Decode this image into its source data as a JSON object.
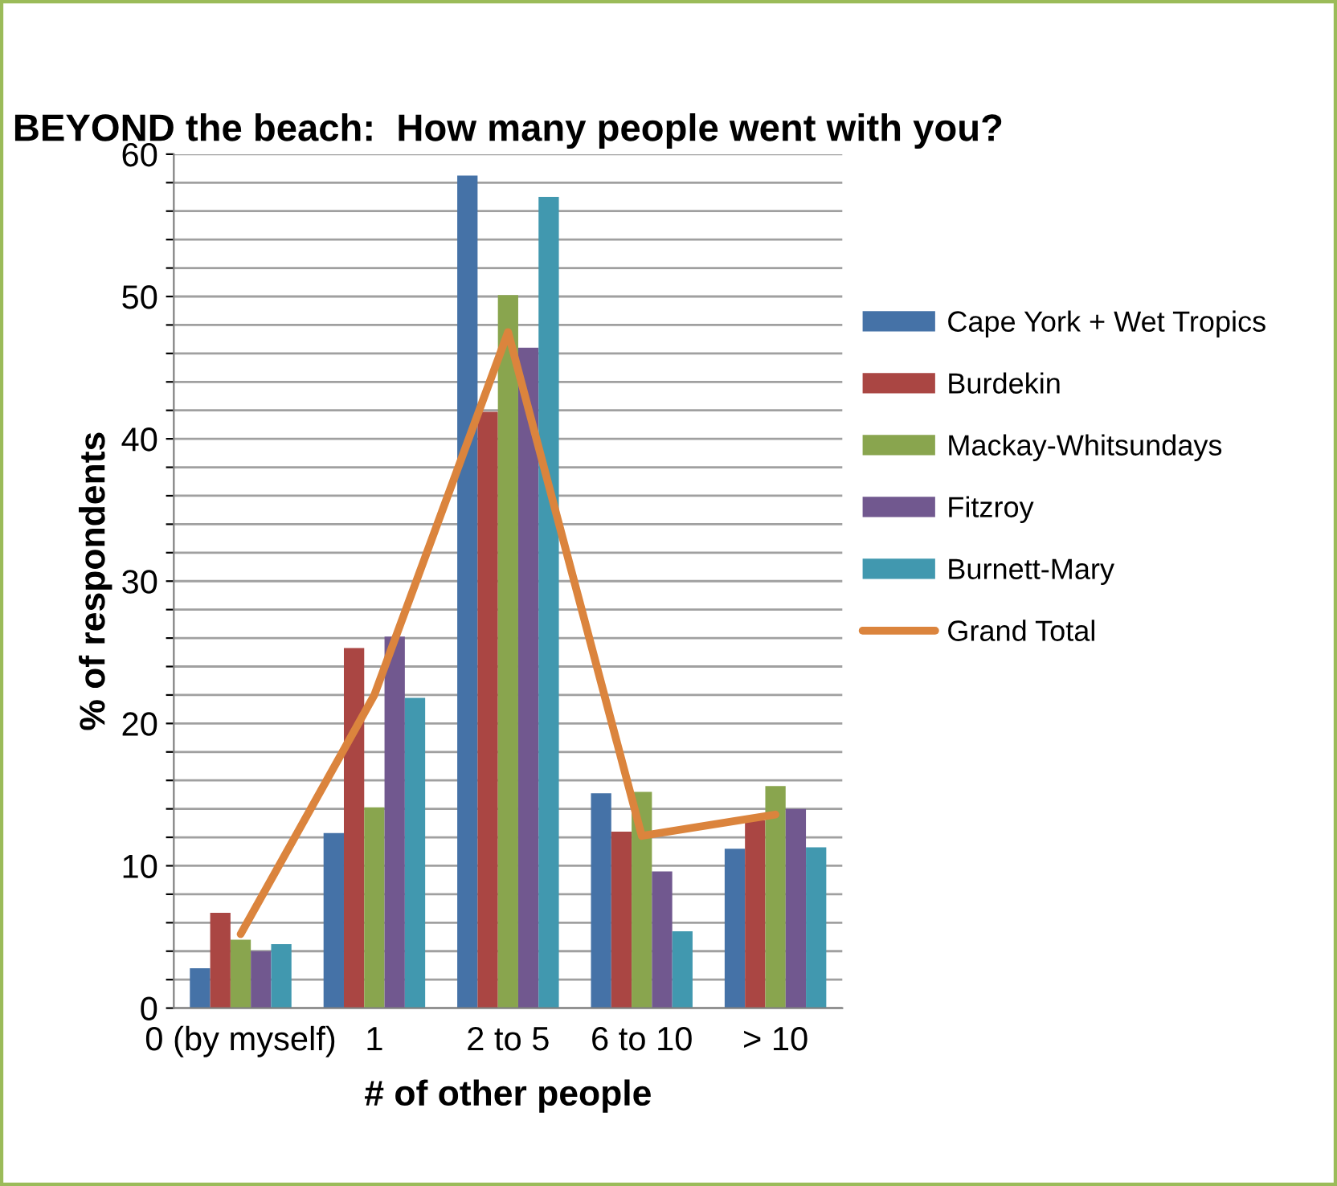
{
  "chart_data": {
    "type": "bar",
    "title": "BEYOND the beach:  How many people went with you?",
    "xlabel": "# of other people",
    "ylabel": "% of respondents",
    "categories": [
      "0 (by myself)",
      "1",
      "2 to 5",
      "6 to 10",
      "> 10"
    ],
    "series": [
      {
        "name": "Cape York + Wet Tropics",
        "color": "#4572a7",
        "values": [
          2.8,
          12.3,
          58.5,
          15.1,
          11.2
        ]
      },
      {
        "name": "Burdekin",
        "color": "#aa4643",
        "values": [
          6.7,
          25.3,
          41.9,
          12.4,
          13.2
        ]
      },
      {
        "name": "Mackay-Whitsundays",
        "color": "#89a54e",
        "values": [
          4.8,
          14.1,
          50.1,
          15.2,
          15.6
        ]
      },
      {
        "name": "Fitzroy",
        "color": "#71588f",
        "values": [
          4.0,
          26.1,
          46.4,
          9.6,
          14.0
        ]
      },
      {
        "name": "Burnett-Mary",
        "color": "#4198af",
        "values": [
          4.5,
          21.8,
          57.0,
          5.4,
          11.3
        ]
      },
      {
        "name": "Grand Total",
        "color": "#db843d",
        "type": "line",
        "values": [
          5.2,
          22.0,
          47.5,
          12.1,
          13.6
        ]
      }
    ],
    "ylim": [
      0,
      60
    ],
    "yticks": [
      0,
      {
        "value": 2,
        "label": null
      },
      {
        "value": 4,
        "label": null
      },
      {
        "value": 6,
        "label": null
      },
      {
        "value": 8,
        "label": null
      },
      10,
      {
        "value": 12,
        "label": null
      },
      {
        "value": 14,
        "label": null
      },
      {
        "value": 16,
        "label": null
      },
      {
        "value": 18,
        "label": null
      },
      20,
      {
        "value": 22,
        "label": null
      },
      {
        "value": 24,
        "label": null
      },
      {
        "value": 26,
        "label": null
      },
      {
        "value": 28,
        "label": null
      },
      30,
      {
        "value": 32,
        "label": null
      },
      {
        "value": 34,
        "label": null
      },
      {
        "value": 36,
        "label": null
      },
      {
        "value": 38,
        "label": null
      },
      40,
      {
        "value": 42,
        "label": null
      },
      {
        "value": 44,
        "label": null
      },
      {
        "value": 46,
        "label": null
      },
      {
        "value": 48,
        "label": null
      },
      50,
      {
        "value": 52,
        "label": null
      },
      {
        "value": 54,
        "label": null
      },
      {
        "value": 56,
        "label": null
      },
      {
        "value": 58,
        "label": null
      },
      60
    ],
    "grid": "y",
    "legend": "right",
    "marker": "none",
    "line_style": "solid"
  }
}
